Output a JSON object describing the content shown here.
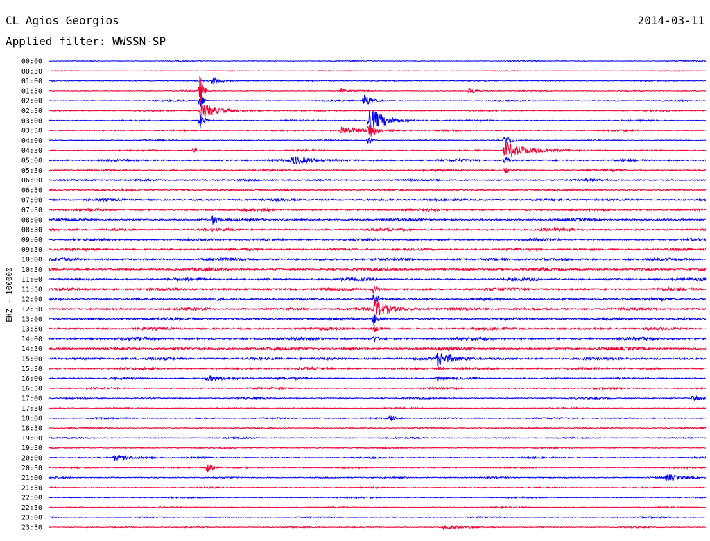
{
  "header": {
    "station": "CL Agios Georgios",
    "date": "2014-03-11",
    "filter": "Applied filter: WWSSN-SP"
  },
  "channel_label": "EHZ - 100000",
  "colors": {
    "trace_a": "#0000ee",
    "trace_b": "#ee0033",
    "text": "#000000",
    "background": "#ffffff"
  },
  "rows": [
    {
      "time": "00:00",
      "noise": 0.35,
      "events": []
    },
    {
      "time": "00:30",
      "noise": 0.3,
      "events": []
    },
    {
      "time": "01:00",
      "noise": 0.45,
      "events": [
        {
          "pos": 0.25,
          "amp": 6,
          "decay": 0.01
        }
      ]
    },
    {
      "time": "01:30",
      "noise": 0.4,
      "events": [
        {
          "pos": 0.2305,
          "amp": 26,
          "decay": 0.004
        },
        {
          "pos": 0.445,
          "amp": 4,
          "decay": 0.004
        },
        {
          "pos": 0.64,
          "amp": 4,
          "decay": 0.01
        }
      ]
    },
    {
      "time": "02:00",
      "noise": 0.5,
      "events": [
        {
          "pos": 0.2305,
          "amp": 14,
          "decay": 0.004
        },
        {
          "pos": 0.48,
          "amp": 10,
          "decay": 0.01
        }
      ]
    },
    {
      "time": "02:30",
      "noise": 0.5,
      "events": [
        {
          "pos": 0.2305,
          "amp": 12,
          "decay": 0.025
        }
      ]
    },
    {
      "time": "03:00",
      "noise": 0.55,
      "events": [
        {
          "pos": 0.2305,
          "amp": 12,
          "decay": 0.005
        },
        {
          "pos": 0.4865,
          "amp": 22,
          "decay": 0.02
        }
      ]
    },
    {
      "time": "03:30",
      "noise": 0.55,
      "events": [
        {
          "pos": 0.445,
          "amp": 6,
          "decay": 0.03
        },
        {
          "pos": 0.4865,
          "amp": 12,
          "decay": 0.01
        }
      ]
    },
    {
      "time": "04:00",
      "noise": 0.5,
      "events": [
        {
          "pos": 0.4865,
          "amp": 6,
          "decay": 0.005
        },
        {
          "pos": 0.694,
          "amp": 6,
          "decay": 0.01
        }
      ]
    },
    {
      "time": "04:30",
      "noise": 0.55,
      "events": [
        {
          "pos": 0.22,
          "amp": 4,
          "decay": 0.005
        },
        {
          "pos": 0.694,
          "amp": 13,
          "decay": 0.03
        }
      ]
    },
    {
      "time": "05:00",
      "noise": 0.75,
      "events": [
        {
          "pos": 0.37,
          "amp": 5,
          "decay": 0.03
        },
        {
          "pos": 0.694,
          "amp": 6,
          "decay": 0.005
        }
      ]
    },
    {
      "time": "05:30",
      "noise": 0.75,
      "events": [
        {
          "pos": 0.694,
          "amp": 5,
          "decay": 0.005
        }
      ]
    },
    {
      "time": "06:00",
      "noise": 0.75,
      "events": []
    },
    {
      "time": "06:30",
      "noise": 0.8,
      "events": []
    },
    {
      "time": "07:00",
      "noise": 0.85,
      "events": []
    },
    {
      "time": "07:30",
      "noise": 0.85,
      "events": []
    },
    {
      "time": "08:00",
      "noise": 0.95,
      "events": [
        {
          "pos": 0.25,
          "amp": 7,
          "decay": 0.005
        }
      ]
    },
    {
      "time": "08:30",
      "noise": 0.95,
      "events": []
    },
    {
      "time": "09:00",
      "noise": 0.95,
      "events": []
    },
    {
      "time": "09:30",
      "noise": 1.0,
      "events": []
    },
    {
      "time": "10:00",
      "noise": 1.05,
      "events": []
    },
    {
      "time": "10:30",
      "noise": 1.05,
      "events": []
    },
    {
      "time": "11:00",
      "noise": 1.05,
      "events": []
    },
    {
      "time": "11:30",
      "noise": 1.05,
      "events": [
        {
          "pos": 0.495,
          "amp": 8,
          "decay": 0.004
        }
      ]
    },
    {
      "time": "12:00",
      "noise": 1.05,
      "events": [
        {
          "pos": 0.495,
          "amp": 12,
          "decay": 0.004
        }
      ]
    },
    {
      "time": "12:30",
      "noise": 1.0,
      "events": [
        {
          "pos": 0.495,
          "amp": 14,
          "decay": 0.02
        }
      ]
    },
    {
      "time": "13:00",
      "noise": 1.05,
      "events": [
        {
          "pos": 0.495,
          "amp": 10,
          "decay": 0.006
        }
      ]
    },
    {
      "time": "13:30",
      "noise": 1.0,
      "events": [
        {
          "pos": 0.495,
          "amp": 6,
          "decay": 0.005
        }
      ]
    },
    {
      "time": "14:00",
      "noise": 1.1,
      "events": [
        {
          "pos": 0.495,
          "amp": 6,
          "decay": 0.004
        }
      ]
    },
    {
      "time": "14:30",
      "noise": 1.1,
      "events": []
    },
    {
      "time": "15:00",
      "noise": 1.1,
      "events": [
        {
          "pos": 0.592,
          "amp": 10,
          "decay": 0.02
        }
      ]
    },
    {
      "time": "15:30",
      "noise": 0.95,
      "events": [
        {
          "pos": 0.592,
          "amp": 5,
          "decay": 0.005
        }
      ]
    },
    {
      "time": "16:00",
      "noise": 0.75,
      "events": [
        {
          "pos": 0.592,
          "amp": 4,
          "decay": 0.005
        },
        {
          "pos": 0.24,
          "amp": 4,
          "decay": 0.03
        }
      ]
    },
    {
      "time": "16:30",
      "noise": 0.65,
      "events": []
    },
    {
      "time": "17:00",
      "noise": 0.55,
      "events": [
        {
          "pos": 0.98,
          "amp": 4,
          "decay": 0.01
        }
      ]
    },
    {
      "time": "17:30",
      "noise": 0.55,
      "events": []
    },
    {
      "time": "18:00",
      "noise": 0.55,
      "events": [
        {
          "pos": 0.52,
          "amp": 5,
          "decay": 0.005
        }
      ]
    },
    {
      "time": "18:30",
      "noise": 0.55,
      "events": []
    },
    {
      "time": "19:00",
      "noise": 0.5,
      "events": []
    },
    {
      "time": "19:30",
      "noise": 0.55,
      "events": []
    },
    {
      "time": "20:00",
      "noise": 0.55,
      "events": [
        {
          "pos": 0.1,
          "amp": 4,
          "decay": 0.03
        }
      ]
    },
    {
      "time": "20:30",
      "noise": 0.55,
      "events": [
        {
          "pos": 0.24,
          "amp": 9,
          "decay": 0.006
        }
      ]
    },
    {
      "time": "21:00",
      "noise": 0.55,
      "events": [
        {
          "pos": 0.94,
          "amp": 4,
          "decay": 0.02
        }
      ]
    },
    {
      "time": "21:30",
      "noise": 0.5,
      "events": []
    },
    {
      "time": "22:00",
      "noise": 0.5,
      "events": []
    },
    {
      "time": "22:30",
      "noise": 0.45,
      "events": []
    },
    {
      "time": "23:00",
      "noise": 0.45,
      "events": []
    },
    {
      "time": "23:30",
      "noise": 0.45,
      "events": [
        {
          "pos": 0.6,
          "amp": 3,
          "decay": 0.02
        }
      ]
    }
  ]
}
